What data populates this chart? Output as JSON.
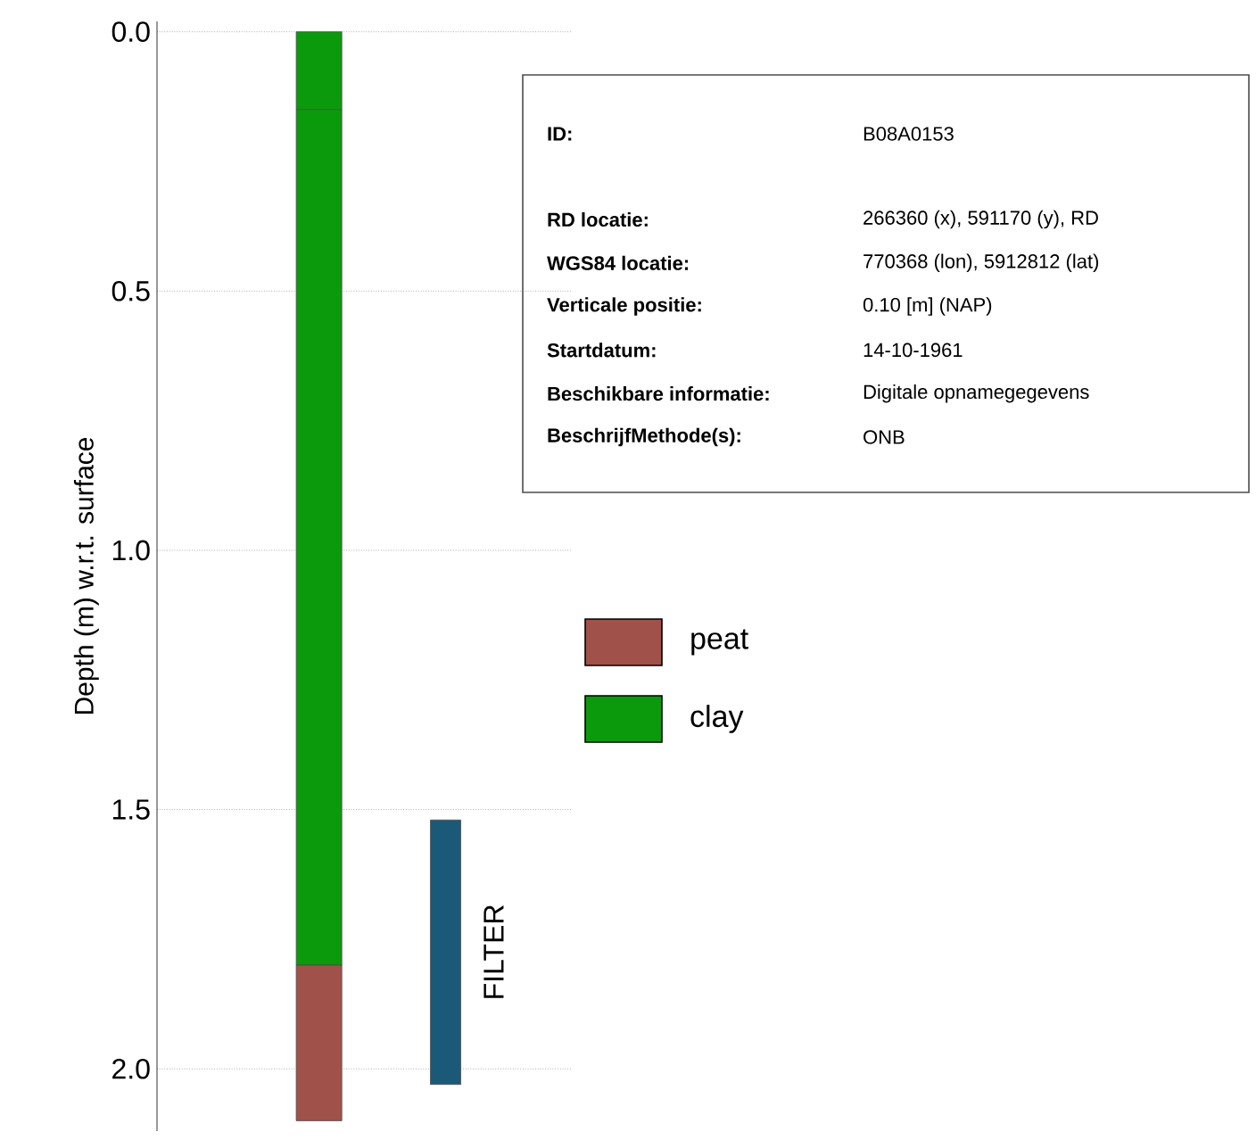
{
  "chart_data": {
    "type": "bar",
    "stacked": true,
    "ylabel": "Depth (m) w.r.t. surface",
    "categories": [
      null,
      null
    ],
    "tick_labels": "y",
    "ylim": [
      2.12,
      -0.02
    ],
    "yticks": [
      {
        "value": 0,
        "label": "0.0"
      },
      {
        "value": 0.5,
        "label": "0.5"
      },
      {
        "value": 1,
        "label": "1.0"
      },
      {
        "value": 1.5,
        "label": "1.5"
      },
      {
        "value": 2,
        "label": "2.0"
      }
    ],
    "grid": "y",
    "legend": "right",
    "series": [
      {
        "color": "#0b9a0b",
        "values": [
          0.15,
          null
        ]
      },
      {
        "name": "clay",
        "color": "#0b9a0b",
        "values": [
          1.65,
          null
        ]
      },
      {
        "name": "peat",
        "color": "#a0524a",
        "values": [
          0.3,
          null
        ]
      },
      {
        "name": "FILTER",
        "color": "#1a5a78",
        "base": [
          null,
          1.52
        ],
        "values": [
          null,
          0.51
        ]
      }
    ],
    "annotations": [
      "ID:",
      "B08A0153",
      "RD locatie:",
      "266360 (x), 591170 (y), RD",
      "WGS84 locatie:",
      "770368 (lon), 5912812 (lat)",
      "Verticale positie:",
      "0.10 [m] (NAP)",
      "Startdatum:",
      "14-10-1961",
      "Beschikbare informatie:",
      "Digitale opnamegegevens",
      "BeschrijfMethode(s):",
      "ONB"
    ]
  }
}
